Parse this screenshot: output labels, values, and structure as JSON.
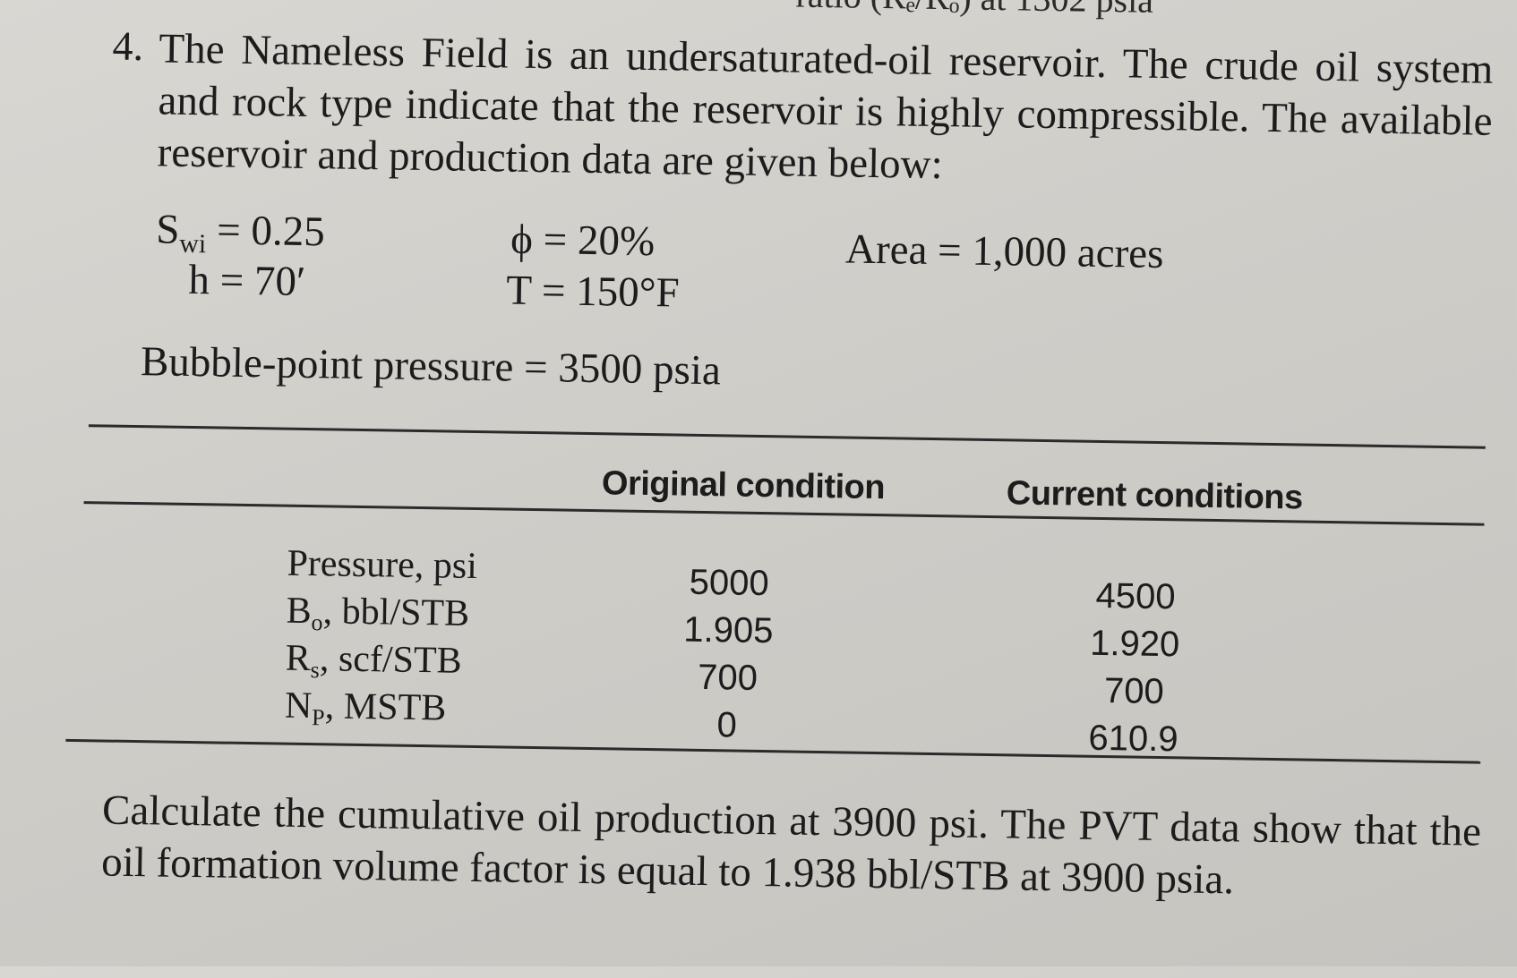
{
  "top_fragment": "ratio (Rₑ/Rₒ) at 1302 psia",
  "problem": {
    "number": "4.",
    "intro": "The Nameless Field is an undersaturated-oil reservoir. The crude oil system and rock type indicate that the reservoir is highly compressible. The available reservoir and production data are given below:",
    "given": {
      "swi": {
        "symbol": "S",
        "sub": "wi",
        "value": "= 0.25"
      },
      "h": "h = 70′",
      "phi": "ϕ = 20%",
      "t": "T = 150°F",
      "area": "Area = 1,000 acres",
      "bubble_point": "Bubble-point pressure = 3500 psia"
    },
    "table": {
      "headers": [
        "Original condition",
        "Current conditions"
      ],
      "rows": [
        {
          "label": {
            "main": "Pressure, psi",
            "sub": "",
            "rest": ""
          },
          "original": "5000",
          "current": "4500"
        },
        {
          "label": {
            "main": "B",
            "sub": "o",
            "rest": ", bbl/STB"
          },
          "original": "1.905",
          "current": "1.920"
        },
        {
          "label": {
            "main": "R",
            "sub": "s",
            "rest": ", scf/STB"
          },
          "original": "700",
          "current": "700"
        },
        {
          "label": {
            "main": "N",
            "sub": "P",
            "rest": ", MSTB"
          },
          "original": "0",
          "current": "610.9"
        }
      ]
    },
    "question": "Calculate the cumulative oil production at 3900 psi. The PVT data show that the oil formation volume factor is equal to 1.938 bbl/STB at 3900 psia."
  }
}
